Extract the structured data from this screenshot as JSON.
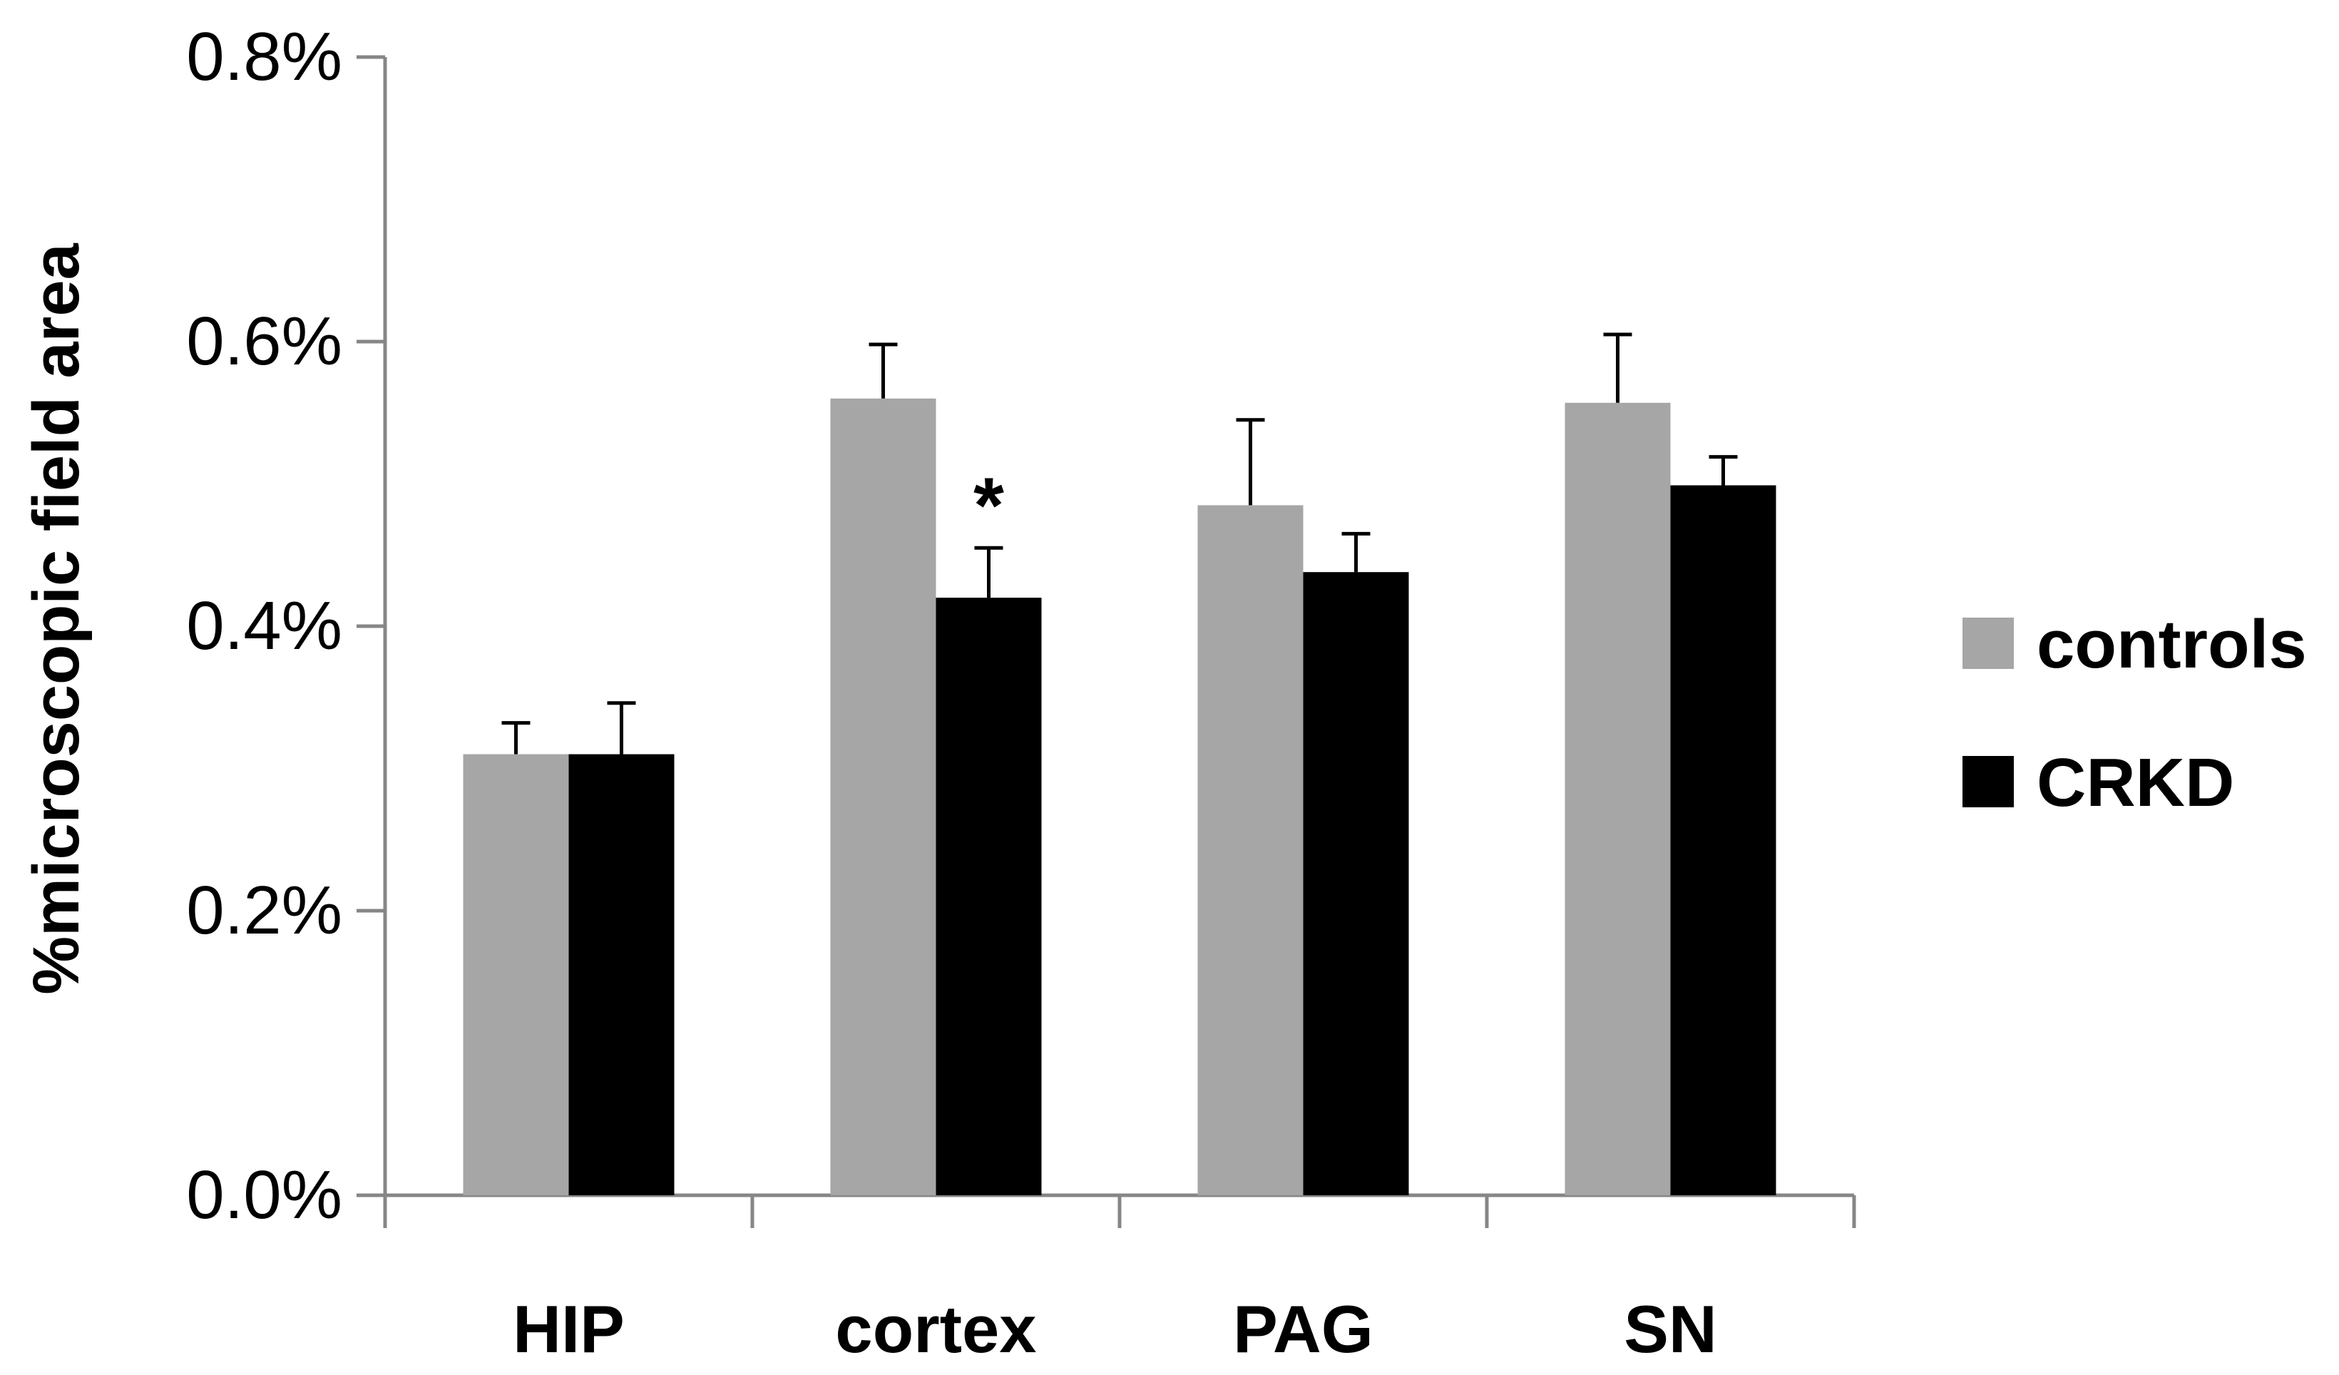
{
  "chart_data": {
    "type": "bar",
    "title": "",
    "xlabel": "",
    "ylabel": "%microscopic field area",
    "ylim": [
      0,
      0.8
    ],
    "yticks": [
      0.0,
      0.2,
      0.4,
      0.6,
      0.8
    ],
    "ytick_labels": [
      "0.0%",
      "0.2%",
      "0.4%",
      "0.6%",
      "0.8%"
    ],
    "categories": [
      "HIP",
      "cortex",
      "PAG",
      "SN"
    ],
    "series": [
      {
        "name": "controls",
        "color": "#a6a6a6",
        "values": [
          0.31,
          0.56,
          0.485,
          0.557
        ],
        "errors": [
          0.022,
          0.038,
          0.06,
          0.048
        ]
      },
      {
        "name": "CRKD",
        "color": "#000000",
        "values": [
          0.31,
          0.42,
          0.438,
          0.499
        ],
        "errors": [
          0.036,
          0.035,
          0.027,
          0.02
        ]
      }
    ],
    "annotations": [
      {
        "text": "*",
        "category": "cortex",
        "series": "CRKD"
      }
    ],
    "legend_position": "right",
    "grid": false
  }
}
